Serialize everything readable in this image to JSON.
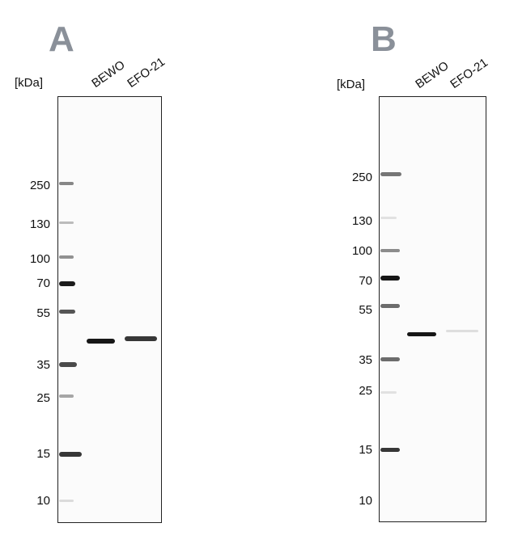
{
  "panels": [
    {
      "letter": "A",
      "unit": "[kDa]",
      "lanes": [
        "BEWO",
        "EFO-21"
      ],
      "markers": [
        "250",
        "130",
        "100",
        "70",
        "55",
        "35",
        "25",
        "15",
        "10"
      ]
    },
    {
      "letter": "B",
      "unit": "[kDa]",
      "lanes": [
        "BEWO",
        "EFO-21"
      ],
      "markers": [
        "250",
        "130",
        "100",
        "70",
        "55",
        "35",
        "25",
        "15",
        "10"
      ]
    }
  ]
}
